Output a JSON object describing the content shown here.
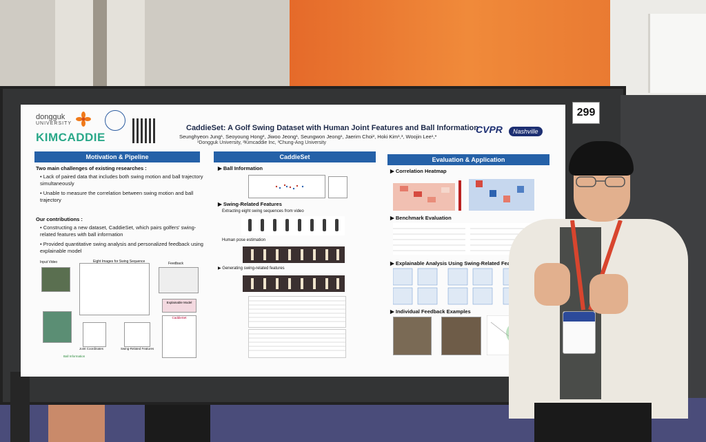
{
  "poster": {
    "number": "299",
    "title": "CaddieSet: A Golf Swing Dataset with Human Joint Features and Ball Information",
    "authors": "Seunghyeon Jung¹, Seoyoung Hong², Jiwoo Jeong¹, Seungwon Jeong¹, Jaerim Choi², Hoki Kim¹,³, Woojin Lee¹,*",
    "affiliations": "¹Dongguk University, ²Kimcaddie Inc, ³Chung-Ang University",
    "logos": {
      "dongguk": "dongguk",
      "dongguk_sub": "UNIVERSITY",
      "kimcaddie": "KIMCADDIE",
      "cvpr": "CVPR",
      "cvpr_sub": "Nashville"
    },
    "sections": {
      "motivation": "Motivation & Pipeline",
      "caddieset": "CaddieSet",
      "evaluation": "Evaluation & Application"
    },
    "motivation": {
      "challenges_heading": "Two main challenges of existing researches :",
      "challenges": [
        "Lack of paired data that includes both swing motion and ball trajectory simultaneously",
        "Unable to measure the correlation between swing motion and ball trajectory"
      ],
      "contributions_heading": "Our contributions :",
      "contributions": [
        "Constructing a new dataset, CaddieSet, which pairs golfers' swing-related features with ball information",
        "Provided quantitative swing analysis and personalized feedback using explainable model"
      ],
      "pipeline_labels": {
        "input_video": "Input Video",
        "eight_images": "Eight Images for Swing Sequence",
        "feedback": "Feedback",
        "explainable_model": "Explainable Model",
        "caddieset": "CaddieSet",
        "joint_coordinates": "Joint Coordinates",
        "swing_features": "Swing-Related Features",
        "ball_information": "Ball Information"
      }
    },
    "caddieset": {
      "ball_info": "Ball Information",
      "swing_features": "Swing-Related Features",
      "extracting": "Extracting eight swing sequences from video",
      "pose": "Human pose estimation",
      "generating": "Generating swing-related features"
    },
    "evaluation": {
      "heatmap": "Correlation Heatmap",
      "benchmark": "Benchmark Evaluation",
      "explainable": "Explainable Analysis Using Swing-Related Features",
      "feedback": "Individual Feedback Examples"
    }
  },
  "colors": {
    "section_bar": "#2561a8",
    "kimcaddie_green": "#2aa889",
    "wall_orange": "#f08a3a",
    "lanyard_red": "#d8452e"
  }
}
